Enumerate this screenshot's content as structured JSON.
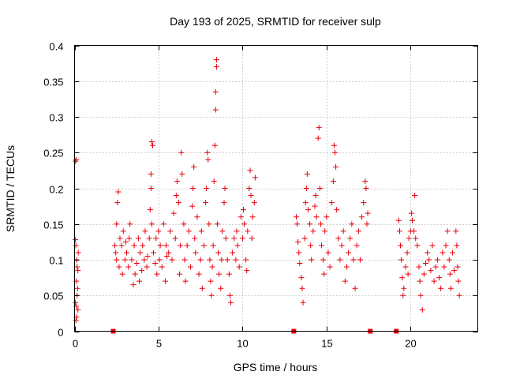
{
  "chart_data": {
    "type": "scatter",
    "title": "Day 193 of 2025, SRMTID for receiver sulp",
    "xlabel": "GPS time / hours",
    "ylabel": "SRMTID / TECUs",
    "xlim": [
      0,
      24
    ],
    "ylim": [
      0,
      0.4
    ],
    "xticks": [
      0,
      5,
      10,
      15,
      20
    ],
    "yticks": [
      0,
      0.05,
      0.1,
      0.15,
      0.2,
      0.25,
      0.3,
      0.35,
      0.4
    ],
    "xtick_labels": [
      "0",
      "5",
      "10",
      "15",
      "20"
    ],
    "ytick_labels": [
      "0",
      "0.05",
      "0.1",
      "0.15",
      "0.2",
      "0.25",
      "0.3",
      "0.35",
      "0.4"
    ],
    "grid": true,
    "marker_color": "#e8000b",
    "series": [
      {
        "name": "SRMTID",
        "marker": "plus",
        "points": [
          [
            0.05,
            0.238
          ],
          [
            0.1,
            0.24
          ],
          [
            0.05,
            0.128
          ],
          [
            0.08,
            0.12
          ],
          [
            0.12,
            0.1
          ],
          [
            0.15,
            0.09
          ],
          [
            0.1,
            0.07
          ],
          [
            0.15,
            0.05
          ],
          [
            0.05,
            0.04
          ],
          [
            0.1,
            0.035
          ],
          [
            0.2,
            0.03
          ],
          [
            0.12,
            0.02
          ],
          [
            0.08,
            0.015
          ],
          [
            0.18,
            0.06
          ],
          [
            0.22,
            0.11
          ],
          [
            0.2,
            0.085
          ],
          [
            2.4,
            0.12
          ],
          [
            2.5,
            0.15
          ],
          [
            2.55,
            0.18
          ],
          [
            2.45,
            0.11
          ],
          [
            2.6,
            0.195
          ],
          [
            2.5,
            0.1
          ],
          [
            2.65,
            0.09
          ],
          [
            2.7,
            0.13
          ],
          [
            2.8,
            0.12
          ],
          [
            2.85,
            0.08
          ],
          [
            2.9,
            0.14
          ],
          [
            3.0,
            0.1
          ],
          [
            3.05,
            0.125
          ],
          [
            3.1,
            0.11
          ],
          [
            3.2,
            0.09
          ],
          [
            3.25,
            0.13
          ],
          [
            3.3,
            0.15
          ],
          [
            3.4,
            0.1
          ],
          [
            3.5,
            0.065
          ],
          [
            3.55,
            0.12
          ],
          [
            3.6,
            0.08
          ],
          [
            3.7,
            0.095
          ],
          [
            3.8,
            0.13
          ],
          [
            3.85,
            0.07
          ],
          [
            3.9,
            0.11
          ],
          [
            4.0,
            0.085
          ],
          [
            4.05,
            0.12
          ],
          [
            4.15,
            0.1
          ],
          [
            4.2,
            0.14
          ],
          [
            4.3,
            0.09
          ],
          [
            4.35,
            0.105
          ],
          [
            4.45,
            0.13
          ],
          [
            4.5,
            0.17
          ],
          [
            4.55,
            0.2
          ],
          [
            4.6,
            0.15
          ],
          [
            4.55,
            0.22
          ],
          [
            4.65,
            0.26
          ],
          [
            4.6,
            0.265
          ],
          [
            4.7,
            0.11
          ],
          [
            4.8,
            0.095
          ],
          [
            4.85,
            0.13
          ],
          [
            4.9,
            0.08
          ],
          [
            5.0,
            0.14
          ],
          [
            5.05,
            0.1
          ],
          [
            5.1,
            0.12
          ],
          [
            5.2,
            0.09
          ],
          [
            5.3,
            0.15
          ],
          [
            5.4,
            0.07
          ],
          [
            5.45,
            0.12
          ],
          [
            5.5,
            0.105
          ],
          [
            5.6,
            0.11
          ],
          [
            5.7,
            0.14
          ],
          [
            5.8,
            0.1
          ],
          [
            5.9,
            0.165
          ],
          [
            6.0,
            0.13
          ],
          [
            6.05,
            0.19
          ],
          [
            6.1,
            0.21
          ],
          [
            6.2,
            0.18
          ],
          [
            6.25,
            0.08
          ],
          [
            6.3,
            0.12
          ],
          [
            6.35,
            0.25
          ],
          [
            6.4,
            0.22
          ],
          [
            6.5,
            0.15
          ],
          [
            6.55,
            0.1
          ],
          [
            6.6,
            0.07
          ],
          [
            6.7,
            0.12
          ],
          [
            6.8,
            0.14
          ],
          [
            6.9,
            0.09
          ],
          [
            7.0,
            0.175
          ],
          [
            7.05,
            0.2
          ],
          [
            7.1,
            0.23
          ],
          [
            7.15,
            0.13
          ],
          [
            7.2,
            0.11
          ],
          [
            7.3,
            0.16
          ],
          [
            7.4,
            0.08
          ],
          [
            7.5,
            0.1
          ],
          [
            7.55,
            0.14
          ],
          [
            7.6,
            0.06
          ],
          [
            7.7,
            0.12
          ],
          [
            7.8,
            0.18
          ],
          [
            7.85,
            0.2
          ],
          [
            7.9,
            0.25
          ],
          [
            7.95,
            0.24
          ],
          [
            8.0,
            0.15
          ],
          [
            8.05,
            0.1
          ],
          [
            8.1,
            0.07
          ],
          [
            8.15,
            0.05
          ],
          [
            8.2,
            0.09
          ],
          [
            8.25,
            0.12
          ],
          [
            8.3,
            0.21
          ],
          [
            8.35,
            0.26
          ],
          [
            8.4,
            0.31
          ],
          [
            8.4,
            0.335
          ],
          [
            8.45,
            0.38
          ],
          [
            8.45,
            0.37
          ],
          [
            8.5,
            0.15
          ],
          [
            8.55,
            0.11
          ],
          [
            8.6,
            0.08
          ],
          [
            8.7,
            0.06
          ],
          [
            8.75,
            0.1
          ],
          [
            8.8,
            0.14
          ],
          [
            8.9,
            0.18
          ],
          [
            8.95,
            0.2
          ],
          [
            9.0,
            0.13
          ],
          [
            9.1,
            0.1
          ],
          [
            9.2,
            0.08
          ],
          [
            9.25,
            0.05
          ],
          [
            9.3,
            0.04
          ],
          [
            9.4,
            0.11
          ],
          [
            9.5,
            0.13
          ],
          [
            9.6,
            0.1
          ],
          [
            9.65,
            0.14
          ],
          [
            9.7,
            0.12
          ],
          [
            9.8,
            0.09
          ],
          [
            9.9,
            0.16
          ],
          [
            10.0,
            0.13
          ],
          [
            10.05,
            0.17
          ],
          [
            10.1,
            0.15
          ],
          [
            10.2,
            0.1
          ],
          [
            10.25,
            0.085
          ],
          [
            10.3,
            0.14
          ],
          [
            10.4,
            0.2
          ],
          [
            10.45,
            0.225
          ],
          [
            10.5,
            0.19
          ],
          [
            10.55,
            0.13
          ],
          [
            10.6,
            0.16
          ],
          [
            10.7,
            0.18
          ],
          [
            10.75,
            0.215
          ],
          [
            13.2,
            0.16
          ],
          [
            13.25,
            0.15
          ],
          [
            13.3,
            0.125
          ],
          [
            13.35,
            0.11
          ],
          [
            13.4,
            0.095
          ],
          [
            13.5,
            0.075
          ],
          [
            13.55,
            0.06
          ],
          [
            13.6,
            0.04
          ],
          [
            13.7,
            0.13
          ],
          [
            13.75,
            0.18
          ],
          [
            13.8,
            0.2
          ],
          [
            13.85,
            0.22
          ],
          [
            13.9,
            0.17
          ],
          [
            14.0,
            0.15
          ],
          [
            14.05,
            0.12
          ],
          [
            14.1,
            0.1
          ],
          [
            14.2,
            0.14
          ],
          [
            14.3,
            0.175
          ],
          [
            14.35,
            0.19
          ],
          [
            14.4,
            0.16
          ],
          [
            14.5,
            0.27
          ],
          [
            14.55,
            0.285
          ],
          [
            14.6,
            0.2
          ],
          [
            14.65,
            0.15
          ],
          [
            14.7,
            0.12
          ],
          [
            14.8,
            0.1
          ],
          [
            14.85,
            0.08
          ],
          [
            14.9,
            0.14
          ],
          [
            15.0,
            0.16
          ],
          [
            15.1,
            0.11
          ],
          [
            15.2,
            0.09
          ],
          [
            15.3,
            0.18
          ],
          [
            15.4,
            0.21
          ],
          [
            15.45,
            0.26
          ],
          [
            15.5,
            0.25
          ],
          [
            15.55,
            0.23
          ],
          [
            15.6,
            0.17
          ],
          [
            15.7,
            0.13
          ],
          [
            15.8,
            0.1
          ],
          [
            15.9,
            0.12
          ],
          [
            16.0,
            0.14
          ],
          [
            16.1,
            0.07
          ],
          [
            16.2,
            0.09
          ],
          [
            16.3,
            0.11
          ],
          [
            16.4,
            0.13
          ],
          [
            16.5,
            0.15
          ],
          [
            16.6,
            0.1
          ],
          [
            16.7,
            0.06
          ],
          [
            16.8,
            0.12
          ],
          [
            16.9,
            0.14
          ],
          [
            17.0,
            0.1
          ],
          [
            17.1,
            0.16
          ],
          [
            17.2,
            0.18
          ],
          [
            17.3,
            0.21
          ],
          [
            17.35,
            0.2
          ],
          [
            17.4,
            0.15
          ],
          [
            17.45,
            0.165
          ],
          [
            19.3,
            0.155
          ],
          [
            19.35,
            0.14
          ],
          [
            19.4,
            0.12
          ],
          [
            19.45,
            0.1
          ],
          [
            19.5,
            0.075
          ],
          [
            19.55,
            0.05
          ],
          [
            19.6,
            0.06
          ],
          [
            19.7,
            0.09
          ],
          [
            19.8,
            0.11
          ],
          [
            19.85,
            0.08
          ],
          [
            19.9,
            0.13
          ],
          [
            20.0,
            0.14
          ],
          [
            20.05,
            0.165
          ],
          [
            20.1,
            0.155
          ],
          [
            20.2,
            0.14
          ],
          [
            20.25,
            0.19
          ],
          [
            20.3,
            0.13
          ],
          [
            20.4,
            0.12
          ],
          [
            20.5,
            0.09
          ],
          [
            20.55,
            0.07
          ],
          [
            20.6,
            0.05
          ],
          [
            20.7,
            0.03
          ],
          [
            20.8,
            0.08
          ],
          [
            20.9,
            0.095
          ],
          [
            21.0,
            0.11
          ],
          [
            21.1,
            0.1
          ],
          [
            21.2,
            0.085
          ],
          [
            21.3,
            0.12
          ],
          [
            21.4,
            0.07
          ],
          [
            21.5,
            0.09
          ],
          [
            21.6,
            0.1
          ],
          [
            21.7,
            0.075
          ],
          [
            21.8,
            0.06
          ],
          [
            21.9,
            0.11
          ],
          [
            22.0,
            0.09
          ],
          [
            22.1,
            0.12
          ],
          [
            22.2,
            0.14
          ],
          [
            22.3,
            0.1
          ],
          [
            22.35,
            0.08
          ],
          [
            22.4,
            0.06
          ],
          [
            22.5,
            0.11
          ],
          [
            22.6,
            0.085
          ],
          [
            22.7,
            0.14
          ],
          [
            22.75,
            0.12
          ],
          [
            22.8,
            0.09
          ],
          [
            22.85,
            0.07
          ],
          [
            22.9,
            0.05
          ]
        ]
      }
    ],
    "gap_markers": [
      {
        "name": "data gap",
        "marker": "square",
        "x": [
          2.3,
          13.05,
          17.6,
          19.15
        ],
        "y": [
          0,
          0,
          0,
          0
        ]
      }
    ]
  }
}
